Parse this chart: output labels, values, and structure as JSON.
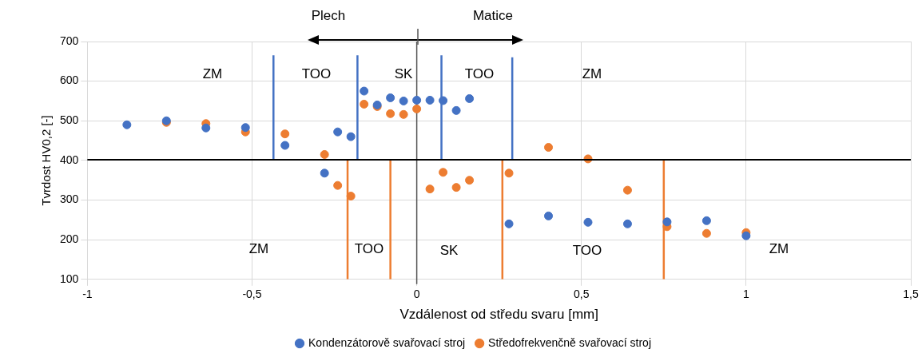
{
  "chart_data": {
    "type": "scatter",
    "xlabel": "Vzdálenost od středu svaru [mm]",
    "ylabel": "Tvrdost HV0,2 [-]",
    "xlim": [
      -1,
      1.5
    ],
    "xticks": [
      -1,
      {
        "value": -0.5,
        "label": "-0,5"
      },
      0,
      {
        "value": 0.5,
        "label": "0,5"
      },
      1,
      {
        "value": 1.5,
        "label": "1,5"
      }
    ],
    "ylim": [
      100,
      700
    ],
    "yticks": [
      100,
      200,
      300,
      400,
      500,
      600,
      700
    ],
    "grid": true,
    "legend": "bottom",
    "marker": "circle",
    "series": [
      {
        "name": "Kondenzátorově svařovací stroj",
        "color": "#4472c4",
        "x": [
          -0.88,
          -0.76,
          -0.64,
          -0.52,
          -0.4,
          -0.28,
          -0.24,
          -0.2,
          -0.16,
          -0.12,
          -0.08,
          -0.04,
          0,
          0.04,
          0.08,
          0.12,
          0.16,
          0.28,
          0.4,
          0.52,
          0.64,
          0.76,
          0.88,
          1.0
        ],
        "values": [
          490,
          500,
          482,
          483,
          438,
          368,
          472,
          460,
          575,
          540,
          558,
          550,
          552,
          552,
          551,
          526,
          556,
          240,
          260,
          244,
          240,
          245,
          248,
          210
        ]
      },
      {
        "name": "Středofrekvenčně svařovací stroj",
        "color": "#ed7d31",
        "x": [
          -0.76,
          -0.64,
          -0.52,
          -0.4,
          -0.28,
          -0.24,
          -0.2,
          -0.16,
          -0.12,
          -0.08,
          -0.04,
          0,
          0.04,
          0.08,
          0.12,
          0.16,
          0.28,
          0.4,
          0.52,
          0.64,
          0.76,
          0.88,
          1.0
        ],
        "values": [
          496,
          493,
          472,
          467,
          415,
          337,
          310,
          542,
          536,
          518,
          516,
          530,
          328,
          370,
          332,
          350,
          368,
          433,
          404,
          325,
          233,
          216,
          218
        ]
      },
      {
        "type": "line",
        "color": "#4472c4",
        "marker": "none",
        "x": [
          -0.435,
          -0.435
        ],
        "values": [
          402,
          665
        ]
      },
      {
        "type": "line",
        "color": "#4472c4",
        "marker": "none",
        "x": [
          -0.18,
          -0.18
        ],
        "values": [
          402,
          665
        ]
      },
      {
        "type": "line",
        "color": "#4472c4",
        "marker": "none",
        "x": [
          0.075,
          0.075
        ],
        "values": [
          402,
          665
        ]
      },
      {
        "type": "line",
        "color": "#4472c4",
        "marker": "none",
        "x": [
          0.29,
          0.29
        ],
        "values": [
          402,
          660
        ]
      },
      {
        "type": "line",
        "color": "#ed7d31",
        "marker": "none",
        "x": [
          -0.21,
          -0.21
        ],
        "values": [
          100,
          402
        ]
      },
      {
        "type": "line",
        "color": "#ed7d31",
        "marker": "none",
        "x": [
          -0.08,
          -0.08
        ],
        "values": [
          100,
          402
        ]
      },
      {
        "type": "line",
        "color": "#ed7d31",
        "marker": "none",
        "x": [
          0.26,
          0.26
        ],
        "values": [
          100,
          402
        ]
      },
      {
        "type": "line",
        "color": "#ed7d31",
        "marker": "none",
        "x": [
          0.75,
          0.75
        ],
        "values": [
          100,
          402
        ]
      }
    ],
    "ref_lines": [
      {
        "axis": "y",
        "value": 402,
        "color": "#000000"
      }
    ],
    "annotations": [
      "Plech",
      "Matice",
      "ZM",
      "TOO",
      "SK",
      "TOO",
      "ZM",
      "ZM",
      "TOO",
      "SK",
      "TOO",
      "ZM"
    ]
  }
}
